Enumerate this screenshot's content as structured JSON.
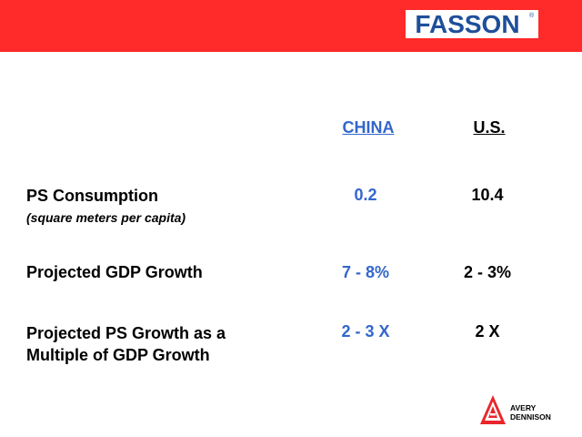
{
  "header": {
    "logo_text": "FASSON",
    "reg_mark": "®"
  },
  "columns": {
    "china": "CHINA",
    "us": "U.S."
  },
  "rows": [
    {
      "label": "PS Consumption",
      "sublabel": "(square meters per capita)",
      "china": "0.2",
      "us": "10.4"
    },
    {
      "label": "Projected GDP Growth",
      "china": "7 - 8%",
      "us": "2 - 3%"
    },
    {
      "label_line1": "Projected PS Growth as a",
      "label_line2": "Multiple of GDP Growth",
      "china": "2 - 3 X",
      "us": "2 X"
    }
  ],
  "footer_logo": {
    "line1": "AVERY",
    "line2": "DENNISON"
  },
  "colors": {
    "banner": "#ff2a2a",
    "logo_blue": "#1f4f9a",
    "china_blue": "#3366cc",
    "avery_red": "#e8262b"
  }
}
